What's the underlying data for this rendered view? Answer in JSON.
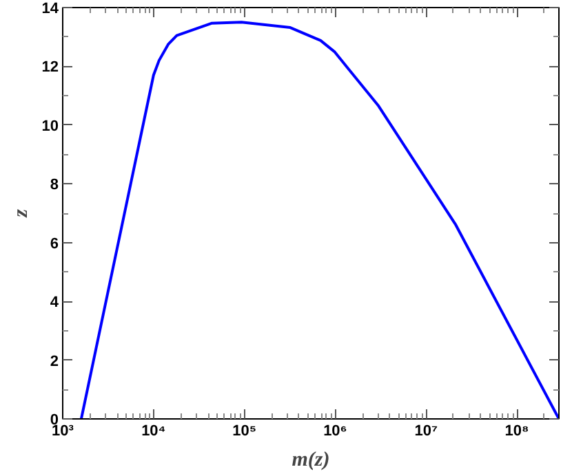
{
  "chart_data": {
    "type": "line",
    "xlabel": "m(z)",
    "ylabel": "z",
    "log": "x",
    "grid": false,
    "marker": "none",
    "line_style": "solid",
    "xlim": [
      1000,
      290000000
    ],
    "ylim": [
      0,
      14
    ],
    "xticks": [
      {
        "value": 1000,
        "label": "10³"
      },
      {
        "value": 10000,
        "label": "10⁴"
      },
      {
        "value": 100000,
        "label": "10⁵"
      },
      {
        "value": 1000000,
        "label": "10⁶"
      },
      {
        "value": 10000000,
        "label": "10⁷"
      },
      {
        "value": 100000000,
        "label": "10⁸"
      }
    ],
    "yticks": [
      0,
      2,
      4,
      6,
      8,
      10,
      12,
      14
    ],
    "series": [
      {
        "color": "#0000ff",
        "x": [
          1600,
          10000,
          11500,
          14500,
          18000,
          44000,
          93000,
          320000,
          690000,
          980000,
          3000000,
          21000000,
          290000000
        ],
        "values": [
          0,
          11.7,
          12.2,
          12.75,
          13.05,
          13.47,
          13.5,
          13.32,
          12.88,
          12.5,
          10.65,
          6.63,
          0
        ]
      }
    ]
  }
}
